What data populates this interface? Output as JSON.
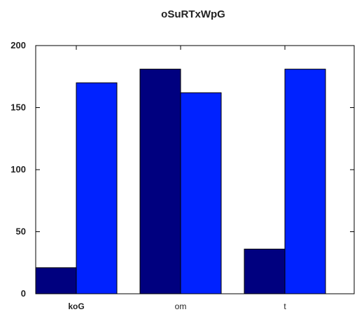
{
  "chart_data": {
    "type": "bar",
    "title": "oSuRTxWpG",
    "categories": [
      "koG",
      "om",
      "t"
    ],
    "series": [
      {
        "values": [
          21,
          181,
          36
        ],
        "color": "#00007f"
      },
      {
        "values": [
          170,
          162,
          181
        ],
        "color": "#0022ff"
      }
    ],
    "ylim": [
      0,
      200
    ],
    "yticks": [
      0,
      50,
      100,
      150,
      200
    ],
    "xlabel": "",
    "ylabel": "",
    "grid": false,
    "legend": "none"
  }
}
